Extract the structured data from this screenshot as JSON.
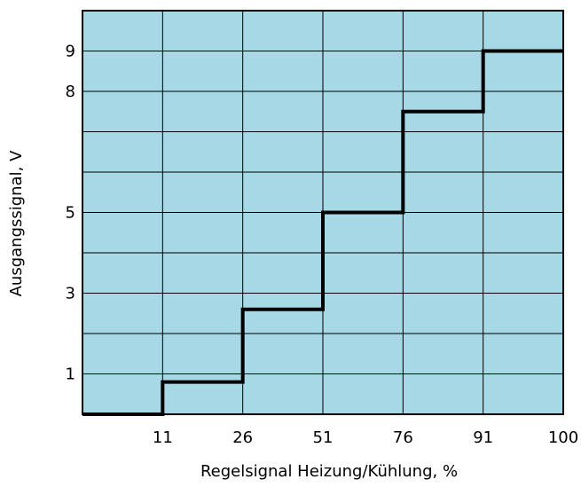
{
  "chart_data": {
    "type": "line",
    "step": true,
    "xlabel": "Regelsignal Heizung/Kühlung, %",
    "ylabel": "Ausgangssignal, V",
    "x_ticks": [
      "11",
      "26",
      "51",
      "76",
      "91",
      "100"
    ],
    "y_ticks": [
      "1",
      "3",
      "5",
      "8",
      "9"
    ],
    "y_tick_values": [
      1,
      3,
      5,
      8,
      9
    ],
    "ylim": [
      0,
      10
    ],
    "grid": true,
    "plot_background": "#a6d8e6",
    "line_color": "#000000",
    "series": [
      {
        "x_index": [
          0,
          1,
          1,
          2,
          2,
          3,
          3,
          4,
          4,
          5,
          5,
          6
        ],
        "y": [
          0,
          0,
          0.8,
          0.8,
          2.6,
          2.6,
          5.0,
          5.0,
          7.5,
          7.5,
          9.0,
          9.0
        ]
      }
    ]
  }
}
